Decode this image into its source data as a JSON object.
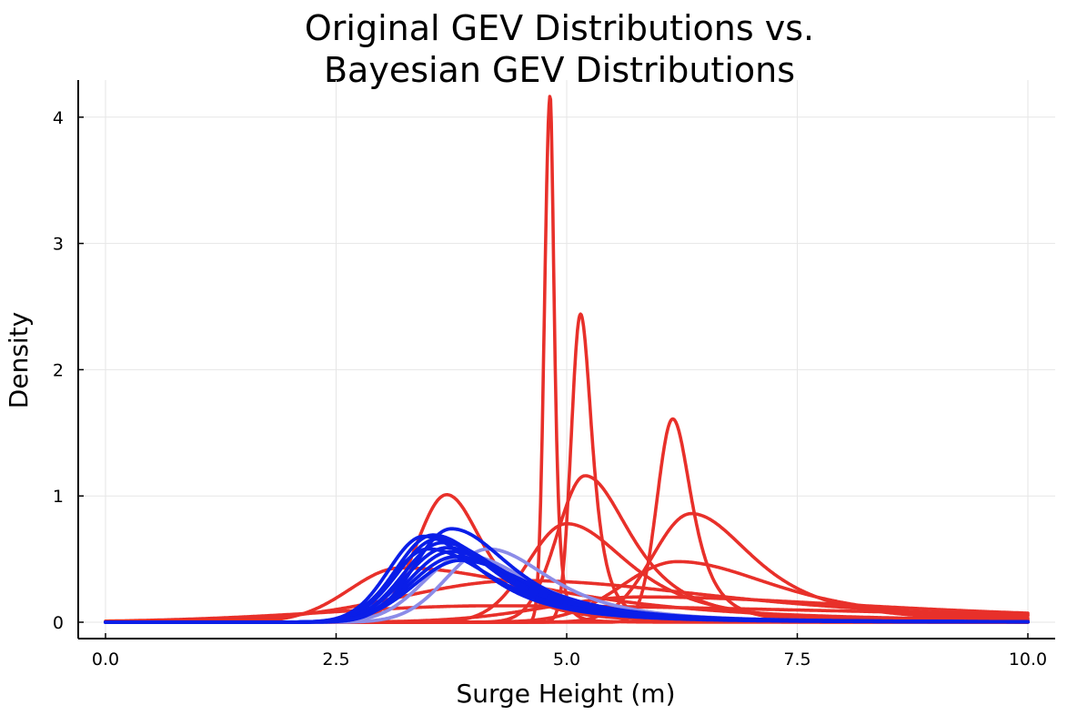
{
  "chart_data": {
    "type": "line",
    "title_line1": "Original GEV Distributions vs.",
    "title_line2": "Bayesian GEV Distributions",
    "xlabel": "Surge Height (m)",
    "ylabel": "Density",
    "xlim": [
      0,
      10
    ],
    "ylim": [
      0,
      4.3
    ],
    "xticks": [
      "0.0",
      "2.5",
      "5.0",
      "7.5",
      "10.0"
    ],
    "yticks": [
      "0",
      "1",
      "2",
      "3",
      "4"
    ],
    "grid": true,
    "legend": "none",
    "colors": {
      "original": "#e8302a",
      "bayesian": "#0a1ee8",
      "bayesian_faint": "#8c8ce8"
    },
    "series": [
      {
        "group": "original",
        "mode": 4.82,
        "peak": 4.17,
        "left_width": 0.06,
        "right_width": 0.05
      },
      {
        "group": "original",
        "mode": 5.15,
        "peak": 2.44,
        "left_width": 0.1,
        "right_width": 0.14
      },
      {
        "group": "original",
        "mode": 6.15,
        "peak": 1.61,
        "left_width": 0.17,
        "right_width": 0.23
      },
      {
        "group": "original",
        "mode": 3.7,
        "peak": 1.01,
        "left_width": 0.33,
        "right_width": 0.45
      },
      {
        "group": "original",
        "mode": 5.2,
        "peak": 1.16,
        "left_width": 0.3,
        "right_width": 0.55
      },
      {
        "group": "original",
        "mode": 6.35,
        "peak": 0.86,
        "left_width": 0.42,
        "right_width": 0.75
      },
      {
        "group": "original",
        "mode": 5.0,
        "peak": 0.78,
        "left_width": 0.42,
        "right_width": 0.75
      },
      {
        "group": "original",
        "mode": 6.2,
        "peak": 0.48,
        "left_width": 0.6,
        "right_width": 1.2
      },
      {
        "group": "original",
        "mode": 3.2,
        "peak": 0.43,
        "left_width": 0.55,
        "right_width": 1.8
      },
      {
        "group": "original",
        "mode": 4.5,
        "peak": 0.33,
        "left_width": 1.3,
        "right_width": 2.5
      },
      {
        "group": "original",
        "mode": 4.2,
        "peak": 0.13,
        "left_width": 1.8,
        "right_width": 5.0
      },
      {
        "group": "original",
        "mode": 5.8,
        "peak": 0.2,
        "left_width": 1.0,
        "right_width": 3.0
      },
      {
        "group": "bayesian_faint",
        "mode": 4.15,
        "peak": 0.58,
        "left_width": 0.45,
        "right_width": 0.75
      },
      {
        "group": "bayesian_faint",
        "mode": 3.9,
        "peak": 0.53,
        "left_width": 0.45,
        "right_width": 0.8
      },
      {
        "group": "bayesian",
        "mode": 3.45,
        "peak": 0.68,
        "left_width": 0.38,
        "right_width": 0.7
      },
      {
        "group": "bayesian",
        "mode": 3.75,
        "peak": 0.74,
        "left_width": 0.4,
        "right_width": 0.72
      },
      {
        "group": "bayesian",
        "mode": 3.55,
        "peak": 0.69,
        "left_width": 0.4,
        "right_width": 0.72
      },
      {
        "group": "bayesian",
        "mode": 3.6,
        "peak": 0.66,
        "left_width": 0.42,
        "right_width": 0.75
      },
      {
        "group": "bayesian",
        "mode": 3.65,
        "peak": 0.63,
        "left_width": 0.42,
        "right_width": 0.78
      },
      {
        "group": "bayesian",
        "mode": 3.7,
        "peak": 0.59,
        "left_width": 0.45,
        "right_width": 0.8
      },
      {
        "group": "bayesian",
        "mode": 3.75,
        "peak": 0.56,
        "left_width": 0.45,
        "right_width": 0.82
      },
      {
        "group": "bayesian",
        "mode": 3.8,
        "peak": 0.52,
        "left_width": 0.48,
        "right_width": 0.85
      },
      {
        "group": "bayesian",
        "mode": 3.85,
        "peak": 0.49,
        "left_width": 0.5,
        "right_width": 0.88
      },
      {
        "group": "bayesian",
        "mode": 3.5,
        "peak": 0.58,
        "left_width": 0.4,
        "right_width": 0.8
      }
    ]
  }
}
